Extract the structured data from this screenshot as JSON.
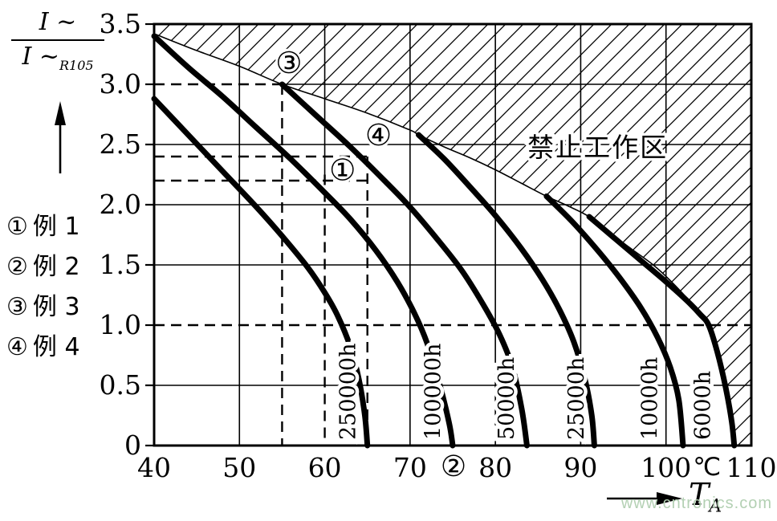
{
  "watermark": {
    "text": "www.cntronics.com",
    "color": "#b3d0b3"
  },
  "y_axis_title": {
    "numerator": "I ~",
    "denominator": "I ~",
    "denominator_sub": "R105"
  },
  "x_axis_title": {
    "text": "T",
    "sub": "A"
  },
  "legend": {
    "items": [
      {
        "symbol": "①",
        "label": "例 1"
      },
      {
        "symbol": "②",
        "label": "例 2"
      },
      {
        "symbol": "③",
        "label": "例 3"
      },
      {
        "symbol": "④",
        "label": "例 4"
      }
    ]
  },
  "chart_data": {
    "type": "line",
    "title": "",
    "xlabel": "T_A",
    "ylabel": "I~ / I~R105",
    "x_axis": {
      "min": 40,
      "max": 110,
      "ticks": [
        40,
        50,
        60,
        70,
        80,
        90,
        100,
        110
      ],
      "unit": "℃",
      "unit_T": 104.8
    },
    "y_axis": {
      "min": 0,
      "max": 3.5,
      "ticks": [
        0,
        0.5,
        1.0,
        1.5,
        2.0,
        2.5,
        3.0,
        3.5
      ],
      "tick_labels": [
        "0",
        "0.5",
        "1.0",
        "1.5",
        "2.0",
        "2.5",
        "3.0",
        "3.5"
      ]
    },
    "grid": {
      "solid_vertical_T": [
        50,
        70,
        80,
        90,
        100
      ],
      "partial_vertical": {
        "T": 60,
        "solid_from_r": 3.5,
        "solid_to_r": 2.25
      },
      "solid_horizontal_r": [
        0.5,
        1.5,
        2.0,
        2.5
      ],
      "partial_horizontal": {
        "r": 3.0,
        "from_T": 55,
        "to_T": 110
      }
    },
    "series": [
      {
        "name": "250000h",
        "label_T": 62.7,
        "points": [
          [
            40,
            2.88
          ],
          [
            44,
            2.58
          ],
          [
            48,
            2.28
          ],
          [
            52,
            1.98
          ],
          [
            55,
            1.74
          ],
          [
            58,
            1.48
          ],
          [
            60,
            1.27
          ],
          [
            61.5,
            1.08
          ],
          [
            63,
            0.82
          ],
          [
            64,
            0.55
          ],
          [
            64.7,
            0.25
          ],
          [
            65,
            0
          ]
        ]
      },
      {
        "name": "100000h",
        "label_T": 72.7,
        "points": [
          [
            40,
            3.4
          ],
          [
            44,
            3.14
          ],
          [
            48,
            2.9
          ],
          [
            52,
            2.64
          ],
          [
            56,
            2.38
          ],
          [
            60,
            2.1
          ],
          [
            63,
            1.88
          ],
          [
            66,
            1.62
          ],
          [
            68.5,
            1.36
          ],
          [
            70.5,
            1.1
          ],
          [
            72,
            0.85
          ],
          [
            73.5,
            0.5
          ],
          [
            74.6,
            0.18
          ],
          [
            75,
            0
          ]
        ]
      },
      {
        "name": "50000h",
        "label_T": 81.3,
        "points": [
          [
            55,
            3.0
          ],
          [
            59,
            2.74
          ],
          [
            63,
            2.48
          ],
          [
            67,
            2.2
          ],
          [
            70,
            1.98
          ],
          [
            73,
            1.73
          ],
          [
            76,
            1.46
          ],
          [
            78.5,
            1.18
          ],
          [
            80.5,
            0.92
          ],
          [
            82,
            0.65
          ],
          [
            83.1,
            0.3
          ],
          [
            83.7,
            0
          ]
        ]
      },
      {
        "name": "25000h",
        "label_T": 89.5,
        "points": [
          [
            71,
            2.58
          ],
          [
            74,
            2.38
          ],
          [
            77,
            2.15
          ],
          [
            80,
            1.91
          ],
          [
            83,
            1.64
          ],
          [
            85.5,
            1.38
          ],
          [
            87.5,
            1.13
          ],
          [
            89.2,
            0.86
          ],
          [
            90.5,
            0.55
          ],
          [
            91.3,
            0.25
          ],
          [
            91.6,
            0
          ]
        ]
      },
      {
        "name": "10000h",
        "label_T": 98.1,
        "points": [
          [
            86,
            2.07
          ],
          [
            89,
            1.86
          ],
          [
            92,
            1.62
          ],
          [
            94.5,
            1.4
          ],
          [
            97,
            1.15
          ],
          [
            99,
            0.9
          ],
          [
            100.5,
            0.65
          ],
          [
            101.5,
            0.38
          ],
          [
            102,
            0
          ]
        ]
      },
      {
        "name": "6000h",
        "label_T": 104.3,
        "points": [
          [
            91,
            1.9
          ],
          [
            94,
            1.72
          ],
          [
            97,
            1.54
          ],
          [
            100,
            1.36
          ],
          [
            102.5,
            1.2
          ],
          [
            104,
            1.09
          ],
          [
            105,
            1.0
          ],
          [
            106,
            0.78
          ],
          [
            107,
            0.48
          ],
          [
            107.7,
            0.2
          ],
          [
            108,
            0
          ]
        ]
      }
    ],
    "envelope_points": [
      [
        40,
        3.42
      ],
      [
        45,
        3.28
      ],
      [
        50,
        3.15
      ],
      [
        55,
        3.0
      ],
      [
        60,
        2.88
      ],
      [
        65,
        2.76
      ],
      [
        70,
        2.62
      ],
      [
        71,
        2.58
      ],
      [
        74,
        2.48
      ],
      [
        77,
        2.39
      ],
      [
        80,
        2.29
      ],
      [
        83,
        2.18
      ],
      [
        86,
        2.07
      ],
      [
        88.5,
        1.99
      ],
      [
        91,
        1.9
      ],
      [
        93.5,
        1.76
      ],
      [
        96,
        1.63
      ],
      [
        98.5,
        1.5
      ],
      [
        100.5,
        1.37
      ],
      [
        103,
        1.18
      ],
      [
        105,
        1.0
      ]
    ],
    "forbidden_zone": {
      "label": "禁止工作区",
      "label_T": 92,
      "label_r": 2.48,
      "tail_points": [
        [
          106,
          0.78
        ],
        [
          107,
          0.48
        ],
        [
          108,
          0
        ]
      ]
    },
    "dashed_guides": [
      [
        [
          40,
          3.0
        ],
        [
          55,
          3.0
        ]
      ],
      [
        [
          55,
          3.0
        ],
        [
          55,
          0
        ]
      ],
      [
        [
          40,
          2.4
        ],
        [
          65,
          2.4
        ]
      ],
      [
        [
          40,
          2.2
        ],
        [
          65,
          2.2
        ]
      ],
      [
        [
          65,
          2.4
        ],
        [
          65,
          0
        ]
      ],
      [
        [
          60,
          2.25
        ],
        [
          60,
          0
        ]
      ],
      [
        [
          40,
          1.0
        ],
        [
          110,
          1.0
        ]
      ]
    ],
    "markers": [
      {
        "symbol": "③",
        "T": 55.8,
        "r": 3.18
      },
      {
        "symbol": "④",
        "T": 66.3,
        "r": 2.58
      },
      {
        "symbol": "①",
        "T": 62.1,
        "r": 2.29
      }
    ],
    "axis_marker": {
      "symbol": "②",
      "T": 75.1
    }
  }
}
